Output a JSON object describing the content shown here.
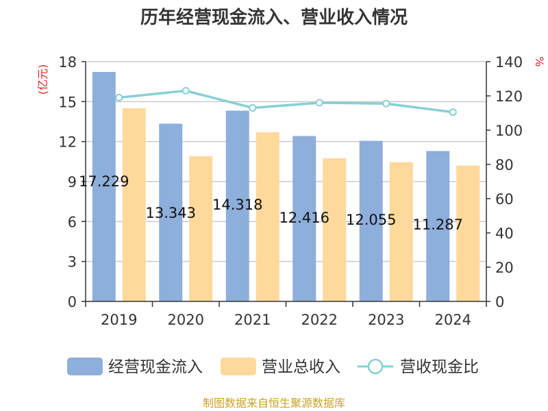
{
  "chart_data": {
    "type": "bar",
    "title": "历年经营现金流入、营业收入情况",
    "categories": [
      "2019",
      "2020",
      "2021",
      "2022",
      "2023",
      "2024"
    ],
    "series": [
      {
        "name": "经营现金流入",
        "type": "bar",
        "axis": "left",
        "color": "#8eaedb",
        "values": [
          17.229,
          13.343,
          14.318,
          12.416,
          12.055,
          11.287
        ],
        "labels": [
          "17.229",
          "13.343",
          "14.318",
          "12.416",
          "12.055",
          "11.287"
        ]
      },
      {
        "name": "营业总收入",
        "type": "bar",
        "axis": "left",
        "color": "#fed99b",
        "values": [
          14.5,
          10.9,
          12.7,
          10.75,
          10.45,
          10.2
        ]
      },
      {
        "name": "营收现金比",
        "type": "line",
        "axis": "right",
        "color": "#86d0d5",
        "values": [
          119,
          123,
          113,
          116,
          115.5,
          110.5
        ]
      }
    ],
    "y_left": {
      "unit": "(亿元)",
      "ylim": [
        0,
        18
      ],
      "ticks": [
        0,
        3,
        6,
        9,
        12,
        15,
        18
      ]
    },
    "y_right": {
      "unit": "%",
      "ylim": [
        0,
        140
      ],
      "ticks": [
        0,
        20,
        40,
        60,
        80,
        100,
        120,
        140
      ]
    },
    "grid": true,
    "legend_position": "bottom",
    "source": "制图数据来自恒生聚源数据库"
  }
}
